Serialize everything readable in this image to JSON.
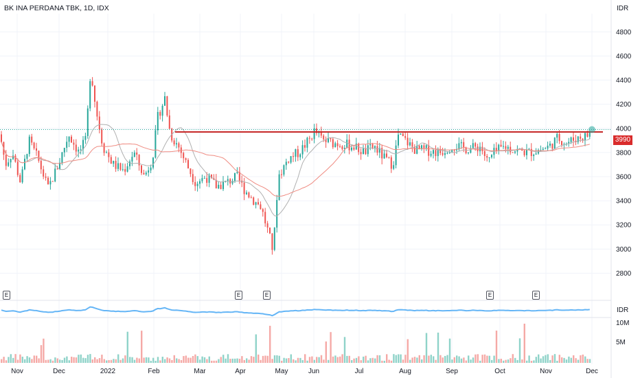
{
  "header": {
    "title": "BK INA PERDANA TBK, 1D, IDX",
    "currency": "IDR"
  },
  "price_badge": "3990",
  "indicator": {
    "currency": "IDR"
  },
  "earnings": {
    "label": "E",
    "months": [
      "Nov",
      "Apr",
      "May",
      "Oct",
      "Nov"
    ]
  },
  "colors": {
    "up": "#26a69a",
    "down": "#ef5350",
    "resistance": "#c62828",
    "ma_fast": "#b0b0b0",
    "ma_slow": "#ef8a80",
    "indicator_line": "#64b5f6",
    "grid": "#f0f3fa"
  },
  "chart_data": {
    "type": "candlestick",
    "title": "BK INA PERDANA TBK, 1D, IDX",
    "ylim": [
      2700,
      4950
    ],
    "y_ticks": [
      2800,
      3000,
      3200,
      3400,
      3600,
      3800,
      4000,
      4200,
      4400,
      4600,
      4800
    ],
    "x_ticks": [
      "Nov",
      "Dec",
      "2022",
      "Feb",
      "Mar",
      "Apr",
      "May",
      "Jun",
      "Jul",
      "Aug",
      "Sep",
      "Oct",
      "Nov",
      "Dec"
    ],
    "last_price": 3990,
    "resistance_level": 3970,
    "volume_ticks": [
      "10M",
      "5M"
    ],
    "ohlc_keypoints": [
      [
        0,
        3950
      ],
      [
        8,
        3700
      ],
      [
        18,
        3800
      ],
      [
        30,
        3550
      ],
      [
        42,
        3900
      ],
      [
        55,
        3750
      ],
      [
        70,
        3500
      ],
      [
        85,
        3700
      ],
      [
        100,
        3950
      ],
      [
        115,
        3800
      ],
      [
        125,
        3900
      ],
      [
        132,
        4500
      ],
      [
        140,
        4150
      ],
      [
        150,
        3850
      ],
      [
        165,
        3700
      ],
      [
        180,
        3650
      ],
      [
        195,
        3800
      ],
      [
        210,
        3600
      ],
      [
        222,
        3750
      ],
      [
        230,
        4100
      ],
      [
        240,
        4250
      ],
      [
        248,
        3950
      ],
      [
        260,
        3850
      ],
      [
        272,
        3700
      ],
      [
        285,
        3550
      ],
      [
        300,
        3600
      ],
      [
        315,
        3520
      ],
      [
        330,
        3550
      ],
      [
        345,
        3600
      ],
      [
        355,
        3500
      ],
      [
        370,
        3400
      ],
      [
        380,
        3350
      ],
      [
        390,
        3150
      ],
      [
        398,
        2980
      ],
      [
        405,
        3600
      ],
      [
        420,
        3750
      ],
      [
        435,
        3800
      ],
      [
        450,
        3900
      ],
      [
        458,
        3980
      ],
      [
        470,
        3900
      ],
      [
        485,
        3880
      ],
      [
        500,
        3870
      ],
      [
        515,
        3850
      ],
      [
        530,
        3800
      ],
      [
        545,
        3850
      ],
      [
        560,
        3750
      ],
      [
        572,
        3700
      ],
      [
        580,
        3940
      ],
      [
        590,
        3900
      ],
      [
        605,
        3820
      ],
      [
        620,
        3820
      ],
      [
        640,
        3800
      ],
      [
        660,
        3860
      ],
      [
        680,
        3830
      ],
      [
        700,
        3850
      ],
      [
        710,
        3720
      ],
      [
        720,
        3800
      ],
      [
        735,
        3850
      ],
      [
        750,
        3820
      ],
      [
        770,
        3800
      ],
      [
        790,
        3830
      ],
      [
        800,
        3850
      ],
      [
        812,
        3920
      ],
      [
        825,
        3880
      ],
      [
        840,
        3920
      ],
      [
        855,
        3940
      ],
      [
        862,
        3990
      ]
    ]
  }
}
